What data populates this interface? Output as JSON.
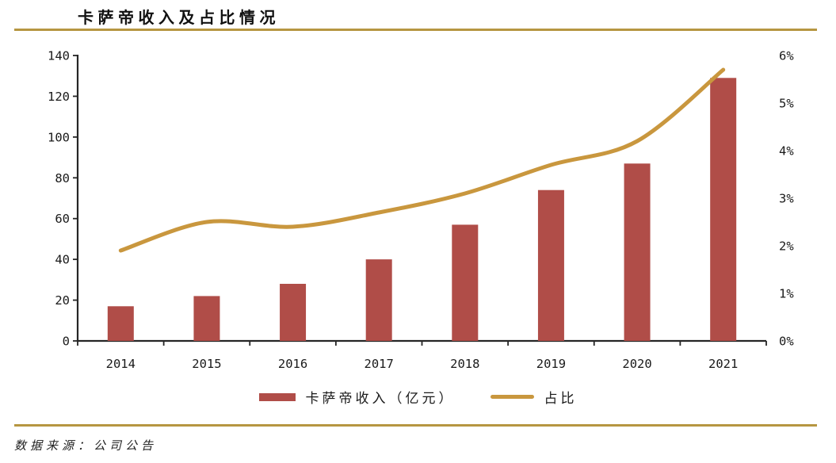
{
  "title": "卡萨帝收入及占比情况",
  "source": "数据来源：公司公告",
  "colors": {
    "bar": "#B04D48",
    "line": "#C9973E",
    "rule": "#B69641",
    "axis": "#262626",
    "text": "#1A1A1A"
  },
  "chart_data": {
    "type": "bar+line combo",
    "title": "卡萨帝收入及占比情况",
    "categories": [
      "2014",
      "2015",
      "2016",
      "2017",
      "2018",
      "2019",
      "2020",
      "2021"
    ],
    "series": [
      {
        "name": "卡萨帝收入（亿元）",
        "type": "bar",
        "axis": "left",
        "values": [
          17,
          22,
          28,
          40,
          57,
          74,
          87,
          129
        ]
      },
      {
        "name": "占比",
        "type": "line",
        "axis": "right",
        "unit": "%",
        "values": [
          1.9,
          2.5,
          2.4,
          2.7,
          3.1,
          3.7,
          4.2,
          5.7
        ]
      }
    ],
    "left_axis": {
      "min": 0,
      "max": 140,
      "step": 20,
      "tick_labels": [
        "0",
        "20",
        "40",
        "60",
        "80",
        "100",
        "120",
        "140"
      ]
    },
    "right_axis": {
      "min": 0,
      "max": 6,
      "step": 1,
      "tick_labels": [
        "0%",
        "1%",
        "2%",
        "3%",
        "4%",
        "5%",
        "6%"
      ]
    },
    "legend_position": "bottom",
    "grid": "off"
  }
}
